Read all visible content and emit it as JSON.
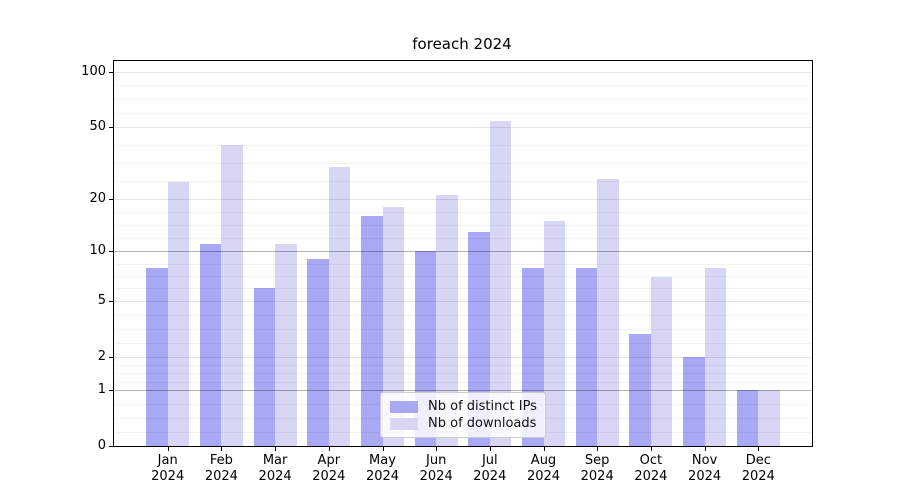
{
  "chart_data": {
    "type": "bar",
    "title": "foreach 2024",
    "categories": [
      "Jan",
      "Feb",
      "Mar",
      "Apr",
      "May",
      "Jun",
      "Jul",
      "Aug",
      "Sep",
      "Oct",
      "Nov",
      "Dec"
    ],
    "category_second_line": "2024",
    "series": [
      {
        "name": "Nb of distinct IPs",
        "color": "#a8a8f5",
        "values": [
          8,
          11,
          6,
          9,
          16,
          10,
          13,
          8,
          8,
          3,
          2,
          1
        ]
      },
      {
        "name": "Nb of downloads",
        "color": "#d7d7f5",
        "values": [
          25,
          40,
          11,
          30,
          18,
          21,
          54,
          15,
          26,
          7,
          8,
          1
        ]
      }
    ],
    "xlabel": "",
    "ylabel": "",
    "yscale": "log1p",
    "ylim": [
      0,
      114
    ],
    "yticks": [
      0,
      1,
      2,
      5,
      10,
      20,
      50,
      100
    ],
    "emphasized_yticks": [
      1,
      10
    ],
    "grid": true,
    "legend_position": "lower center",
    "colors": {
      "grid_minor": "rgba(0,0,0,0.05)",
      "grid_major": "rgba(0,0,0,0.10)",
      "grid_emphasized": "rgba(0,0,0,0.30)",
      "axis": "#000000",
      "text": "#000000"
    }
  }
}
